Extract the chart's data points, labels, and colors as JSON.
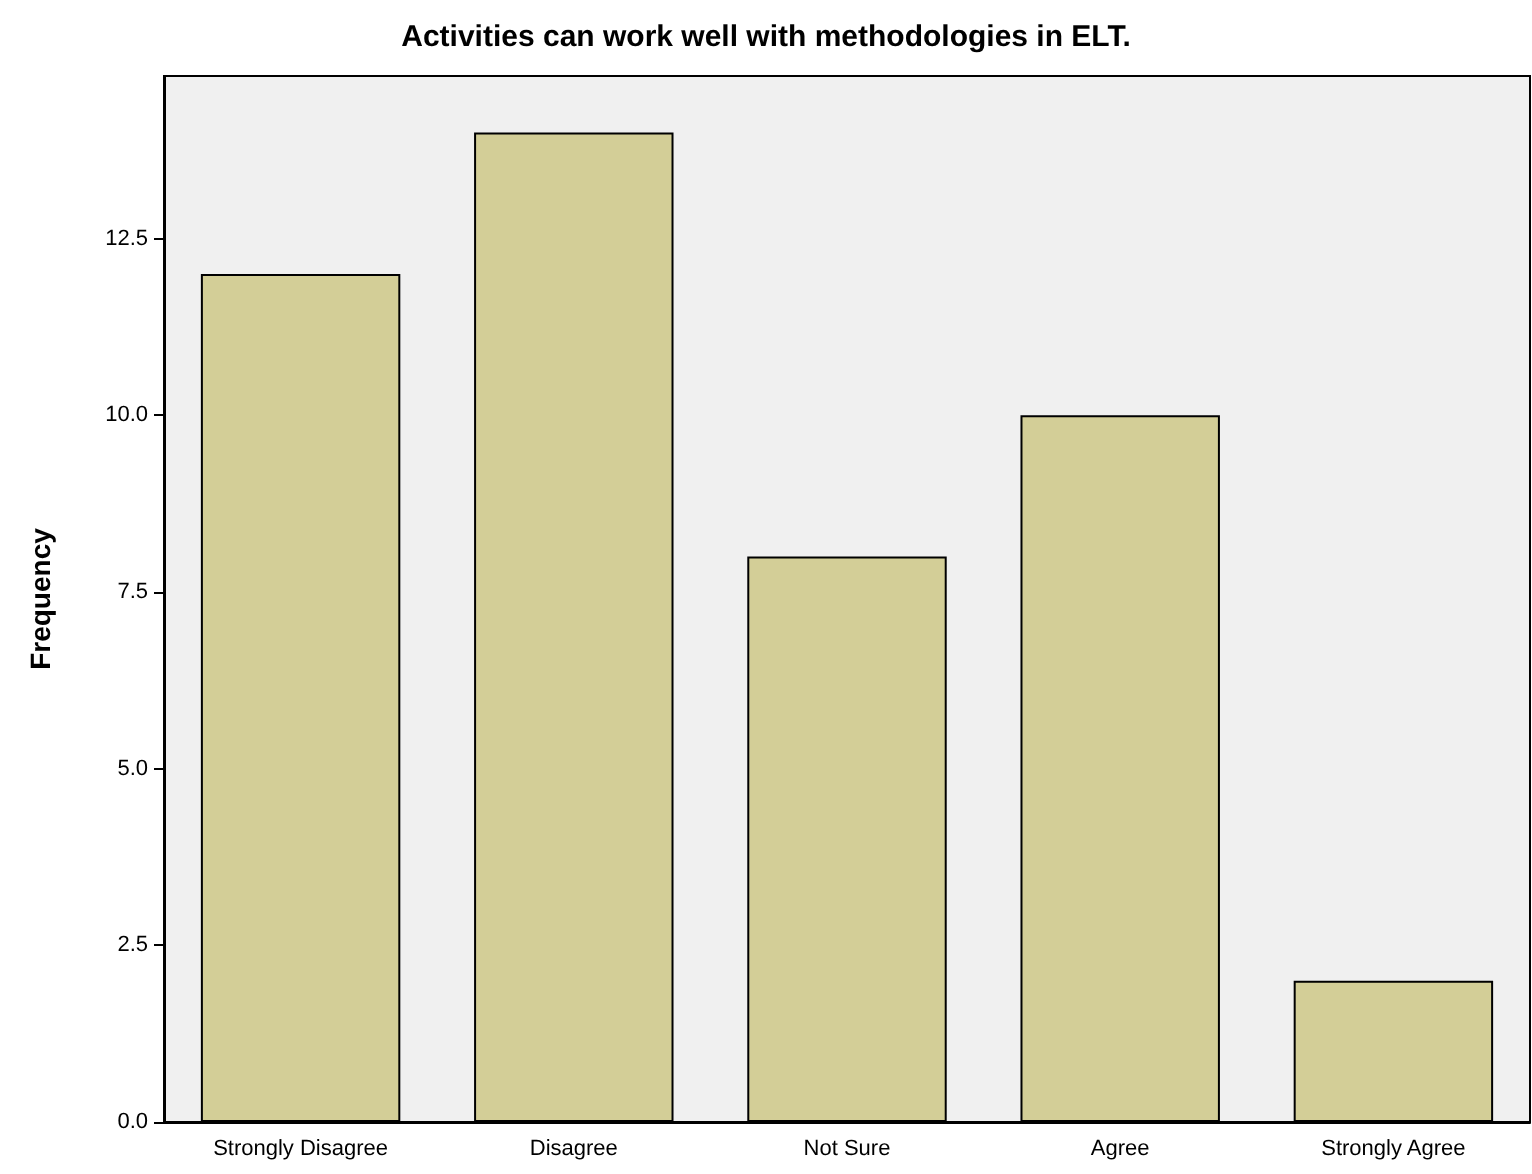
{
  "chart_data": {
    "type": "bar",
    "title": "Activities can work well with methodologies in ELT.",
    "ylabel": "Frequency",
    "categories": [
      "Strongly Disagree",
      "Disagree",
      "Not Sure",
      "Agree",
      "Strongly Agree"
    ],
    "values": [
      12,
      14,
      8,
      10,
      2
    ],
    "color": "#d3ce97",
    "ylim": [
      0,
      14.8
    ],
    "yticks": [
      {
        "value": 0,
        "label": "0.0"
      },
      {
        "value": 2.5,
        "label": "2.5"
      },
      {
        "value": 5,
        "label": "5.0"
      },
      {
        "value": 7.5,
        "label": "7.5"
      },
      {
        "value": 10,
        "label": "10.0"
      },
      {
        "value": 12.5,
        "label": "12.5"
      }
    ],
    "grid": false
  }
}
